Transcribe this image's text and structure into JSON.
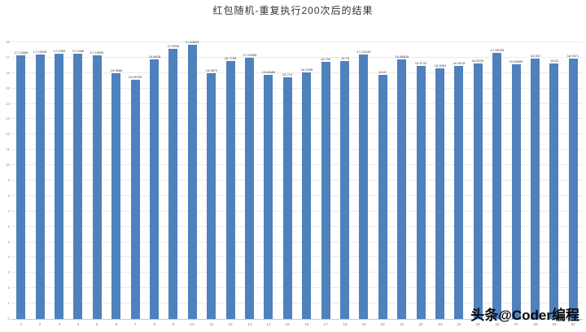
{
  "watermark": "头条@Coder编程",
  "chart_data": {
    "type": "bar",
    "title": "红包随机-重复执行200次后的结果",
    "xlabel": "",
    "ylabel": "",
    "ylim": [
      0,
      18
    ],
    "y_tick_step": 1,
    "grid": true,
    "legend": "none",
    "bar_color": "#4f81bd",
    "gridline_color": "#ebebeb",
    "categories": [
      "1",
      "2",
      "3",
      "4",
      "5",
      "6",
      "7",
      "8",
      "9",
      "10",
      "11",
      "12",
      "13",
      "14",
      "15",
      "16",
      "17",
      "18",
      "19",
      "20",
      "21",
      "22",
      "23",
      "24",
      "25",
      "26",
      "27",
      "28",
      "29",
      "30"
    ],
    "values": [
      17.14565,
      17.23035,
      17.2389,
      17.2488,
      17.15655,
      15.9688,
      15.56755,
      16.8928,
      17.5906,
      17.84625,
      15.9879,
      16.7798,
      17.00385,
      15.88685,
      15.719,
      16.0185,
      16.705,
      16.78,
      17.23135,
      15.87,
      16.86835,
      16.4742,
      16.3062,
      16.4678,
      16.6233,
      17.28795,
      16.55655,
      16.937,
      16.62,
      16.9371
    ],
    "labels": [
      "17.14565",
      "17.23035",
      "17.2389",
      "17.2488",
      "17.15655",
      "15.9688",
      "15.56755",
      "16.8928",
      "17.5906",
      "17.84625",
      "15.9879",
      "16.7798",
      "17.00385",
      "15.88685",
      "15.719",
      "16.0185",
      "16.705",
      "16.78",
      "17.23135",
      "15.87",
      "16.86835",
      "16.4742",
      "16.3062",
      "16.4678",
      "16.6233",
      "17.28795",
      "16.55655",
      "16.937",
      "16.62",
      "16.9371"
    ]
  }
}
